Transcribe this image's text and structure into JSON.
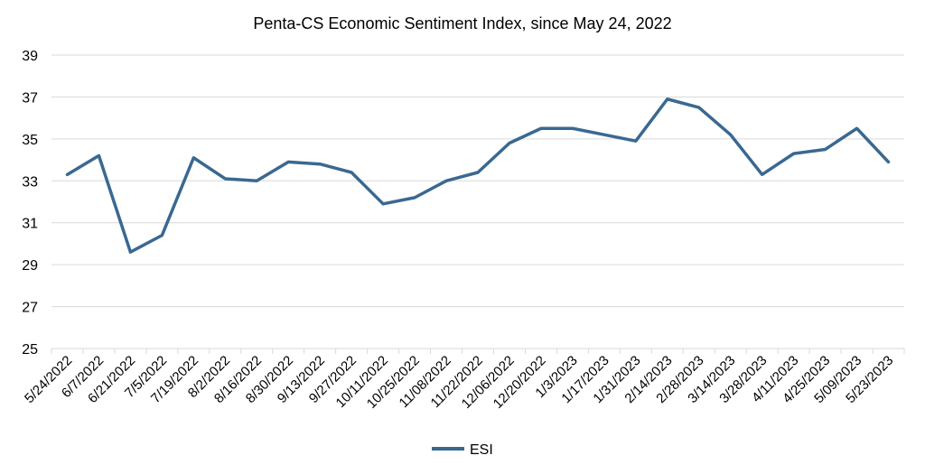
{
  "chart_data": {
    "type": "line",
    "title": "Penta-CS Economic Sentiment Index, since May 24, 2022",
    "xlabel": "",
    "ylabel": "",
    "ylim": [
      25,
      39
    ],
    "yticks": [
      "25",
      "27",
      "29",
      "31",
      "33",
      "35",
      "37",
      "39"
    ],
    "grid": true,
    "legend_position": "bottom-center",
    "line_color": "#3a6891",
    "categories": [
      "5/24/2022",
      "6/7/2022",
      "6/21/2022",
      "7/5/2022",
      "7/19/2022",
      "8/2/2022",
      "8/16/2022",
      "8/30/2022",
      "9/13/2022",
      "9/27/2022",
      "10/11/2022",
      "10/25/2022",
      "11/08/2022",
      "11/22/2022",
      "12/06/2022",
      "12/20/2022",
      "1/3/2023",
      "1/17/2023",
      "1/31/2023",
      "2/14/2023",
      "2/28/2023",
      "3/14/2023",
      "3/28/2023",
      "4/11/2023",
      "4/25/2023",
      "5/09/2023",
      "5/23/2023"
    ],
    "series": [
      {
        "name": "ESI",
        "values": [
          33.3,
          34.2,
          29.6,
          30.4,
          34.1,
          33.1,
          33.0,
          33.9,
          33.8,
          33.4,
          31.9,
          32.2,
          33.0,
          33.4,
          34.8,
          35.5,
          35.5,
          35.2,
          34.9,
          36.9,
          36.5,
          35.2,
          33.3,
          34.3,
          34.5,
          35.5,
          33.9
        ]
      }
    ]
  }
}
